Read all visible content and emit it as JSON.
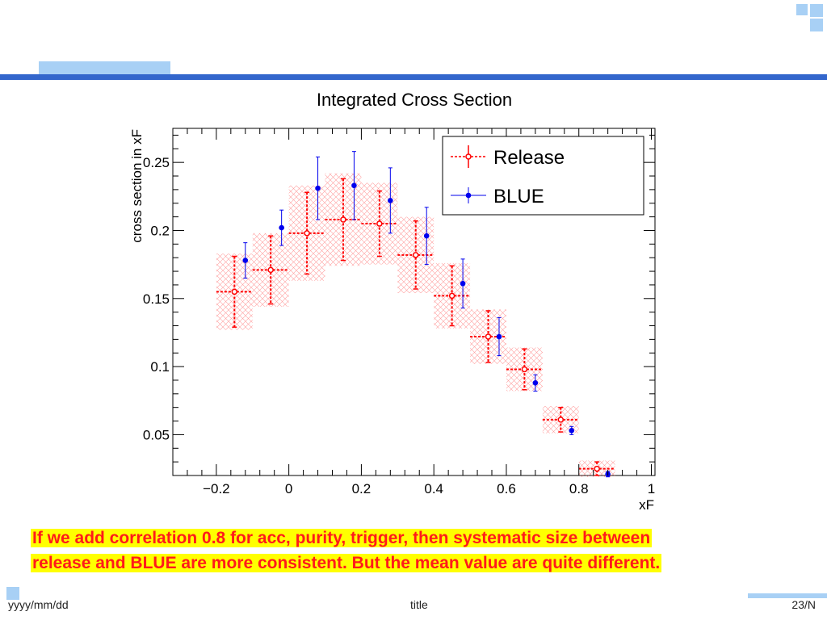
{
  "slide": {
    "caption_line1": "If we add correlation 0.8 for acc, purity, trigger, then systematic size between",
    "caption_line2": "release and BLUE are more consistent. But the mean value are quite different.",
    "footer_date": "yyyy/mm/dd",
    "footer_title": "title",
    "footer_page": "23/N",
    "accent_color": "#3366cc",
    "light_accent_color": "#a8d0f5"
  },
  "chart_data": {
    "type": "scatter",
    "title": "Integrated Cross Section",
    "xlabel": "xF",
    "ylabel": "cross section in xF",
    "xlim": [
      -0.32,
      1.01
    ],
    "ylim": [
      0.02,
      0.275
    ],
    "xticks": [
      -0.2,
      0,
      0.2,
      0.4,
      0.6,
      0.8,
      1
    ],
    "xtick_labels": [
      "−0.2",
      "0",
      "0.2",
      "0.4",
      "0.6",
      "0.8",
      "1"
    ],
    "yticks": [
      0.05,
      0.1,
      0.15,
      0.2,
      0.25
    ],
    "ytick_labels": [
      "0.05",
      "0.1",
      "0.15",
      "0.2",
      "0.25"
    ],
    "legend_position": "top-right",
    "series": [
      {
        "name": "Release",
        "color": "#ff0000",
        "marker": "open-circle",
        "x": [
          -0.15,
          -0.05,
          0.05,
          0.15,
          0.25,
          0.35,
          0.45,
          0.55,
          0.65,
          0.75,
          0.85
        ],
        "y": [
          0.155,
          0.171,
          0.198,
          0.208,
          0.205,
          0.182,
          0.152,
          0.122,
          0.098,
          0.061,
          0.025
        ],
        "x_err": [
          0.05,
          0.05,
          0.05,
          0.05,
          0.05,
          0.05,
          0.05,
          0.05,
          0.05,
          0.05,
          0.05
        ],
        "y_err": [
          0.026,
          0.025,
          0.03,
          0.03,
          0.024,
          0.025,
          0.022,
          0.019,
          0.015,
          0.009,
          0.005
        ],
        "sys_err": [
          0.028,
          0.027,
          0.035,
          0.034,
          0.03,
          0.028,
          0.024,
          0.02,
          0.016,
          0.01,
          0.006
        ]
      },
      {
        "name": "BLUE",
        "color": "#0000ee",
        "marker": "filled-circle",
        "x": [
          -0.12,
          -0.02,
          0.08,
          0.18,
          0.28,
          0.38,
          0.48,
          0.58,
          0.68,
          0.78,
          0.88
        ],
        "y": [
          0.178,
          0.202,
          0.231,
          0.233,
          0.222,
          0.196,
          0.161,
          0.122,
          0.088,
          0.053,
          0.021
        ],
        "y_err": [
          0.013,
          0.013,
          0.023,
          0.025,
          0.024,
          0.021,
          0.018,
          0.014,
          0.006,
          0.003,
          0.002
        ]
      }
    ]
  }
}
